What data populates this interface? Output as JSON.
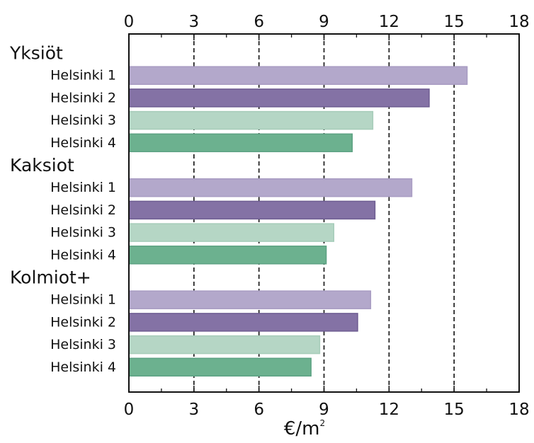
{
  "chart_data": {
    "type": "bar",
    "orientation": "horizontal",
    "xlim": [
      0,
      18
    ],
    "xticks": [
      0,
      3,
      6,
      9,
      12,
      15,
      18
    ],
    "xlabel": "€/m",
    "xlabel_superscript": "2",
    "grid": "vertical dashed",
    "groups": [
      {
        "name": "Yksiöt",
        "bars": [
          {
            "label": "Helsinki 1",
            "value": 15.6
          },
          {
            "label": "Helsinki 2",
            "value": 13.85
          },
          {
            "label": "Helsinki 3",
            "value": 11.25
          },
          {
            "label": "Helsinki 4",
            "value": 10.3
          }
        ]
      },
      {
        "name": "Kaksiot",
        "bars": [
          {
            "label": "Helsinki 1",
            "value": 13.05
          },
          {
            "label": "Helsinki 2",
            "value": 11.35
          },
          {
            "label": "Helsinki 3",
            "value": 9.45
          },
          {
            "label": "Helsinki 4",
            "value": 9.1
          }
        ]
      },
      {
        "name": "Kolmiot+",
        "bars": [
          {
            "label": "Helsinki 1",
            "value": 11.15
          },
          {
            "label": "Helsinki 2",
            "value": 10.55
          },
          {
            "label": "Helsinki 3",
            "value": 8.8
          },
          {
            "label": "Helsinki 4",
            "value": 8.4
          }
        ]
      }
    ],
    "series_colors": [
      "#b3a8cb",
      "#8472a5",
      "#b5d6c5",
      "#6cb18f"
    ],
    "series_border_colors": [
      "#a89cc2",
      "#6e5d92",
      "#a6ccb9",
      "#5da283"
    ]
  }
}
